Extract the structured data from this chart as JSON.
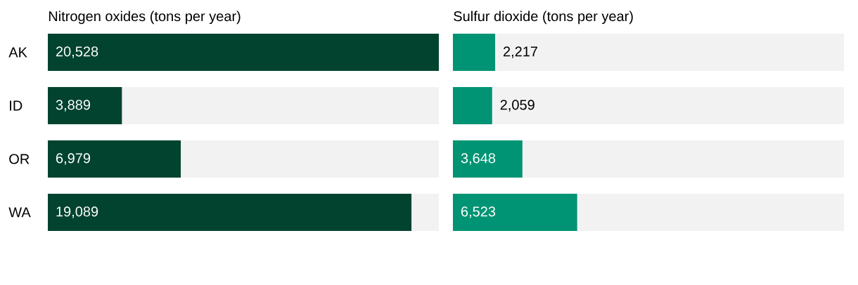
{
  "chart_data": [
    {
      "type": "bar",
      "orientation": "horizontal",
      "title": "Nitrogen oxides (tons per year)",
      "categories": [
        "AK",
        "ID",
        "OR",
        "WA"
      ],
      "values": [
        20528,
        3889,
        6979,
        19089
      ],
      "value_labels": [
        "20,528",
        "3,889",
        "6,979",
        "19,089"
      ],
      "color": "#02432f",
      "tick_labels": "y"
    },
    {
      "type": "bar",
      "orientation": "horizontal",
      "title": "Sulfur dioxide (tons per year)",
      "categories": [
        null,
        null,
        null,
        null
      ],
      "values": [
        2217,
        2059,
        3648,
        6523
      ],
      "value_labels": [
        "2,217",
        "2,059",
        "3,648",
        "6,523"
      ],
      "color": "#009474",
      "tick_labels": false
    }
  ]
}
